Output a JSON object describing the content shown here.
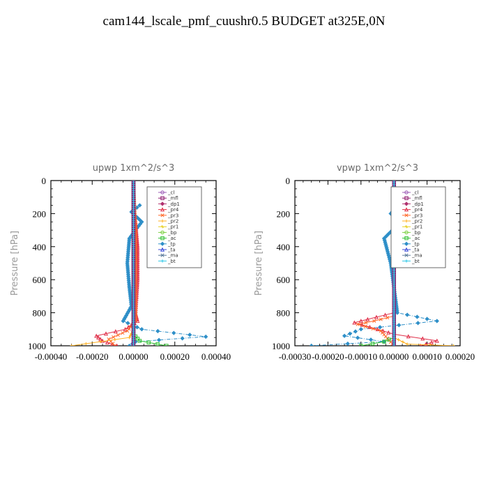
{
  "title": "cam144_lscale_pmf_cuushr0.5  BUDGET at325E,0N",
  "legend_entries": [
    "_cl",
    "_mfl",
    "_dp1",
    "_pr4",
    "_pr3",
    "_pr2",
    "_pr1",
    "_bp",
    "_ac",
    "_tp",
    "_ta",
    "_ma",
    "_bt"
  ],
  "colors": {
    "_cl": "#9b59b6",
    "_mfl": "#8e1a6e",
    "_dp1": "#b0306e",
    "_pr4": "#e0304a",
    "_pr3": "#ff6a2a",
    "_pr2": "#ffb020",
    "_pr1": "#e8d020",
    "_bp": "#7ad040",
    "_ac": "#30c030",
    "_tp": "#2e8fc8",
    "_ta": "#3a4ad8",
    "_ma": "#5a7a9a",
    "_bt": "#30c8e8"
  },
  "chart_data": [
    {
      "type": "line",
      "title": "upwp   1xm^2/s^3",
      "ylabel": "Pressure [hPa]",
      "xlabel": "",
      "xlim": [
        -0.0004,
        0.0004
      ],
      "ylim": [
        1000,
        0
      ],
      "x_ticks": [
        "-0.00040",
        "-0.00020",
        "0.00000",
        "0.00020",
        "0.00040"
      ],
      "y_ticks": [
        "0",
        "200",
        "400",
        "600",
        "800",
        "1000"
      ],
      "legend": "top-right",
      "series": [
        {
          "name": "_tp",
          "points": [
            [
              3e-05,
              150
            ],
            [
              -1e-05,
              190
            ],
            [
              4e-05,
              250
            ],
            [
              -2e-05,
              350
            ],
            [
              -3e-05,
              500
            ],
            [
              -2e-05,
              650
            ],
            [
              -1e-05,
              760
            ],
            [
              -5e-05,
              850
            ],
            [
              4e-05,
              900
            ],
            [
              0.00035,
              945
            ],
            [
              1e-05,
              975
            ],
            [
              -2e-05,
              1000
            ]
          ]
        },
        {
          "name": "_pr4",
          "points": [
            [
              0.0,
              0
            ],
            [
              0.0,
              150
            ],
            [
              1e-05,
              250
            ],
            [
              2e-05,
              400
            ],
            [
              2e-05,
              600
            ],
            [
              1e-05,
              800
            ],
            [
              2e-05,
              850
            ],
            [
              -4e-05,
              900
            ],
            [
              -0.00018,
              940
            ],
            [
              -0.00015,
              970
            ],
            [
              -8e-05,
              1000
            ]
          ]
        },
        {
          "name": "_pr3",
          "points": [
            [
              0.0,
              0
            ],
            [
              1e-05,
              300
            ],
            [
              1e-05,
              700
            ],
            [
              1e-05,
              850
            ],
            [
              -3e-05,
              910
            ],
            [
              -0.00012,
              960
            ],
            [
              -9e-05,
              1000
            ]
          ]
        },
        {
          "name": "_pr2",
          "points": [
            [
              0.0,
              0
            ],
            [
              0.0,
              900
            ],
            [
              -2e-05,
              950
            ],
            [
              -0.0003,
              1000
            ]
          ]
        },
        {
          "name": "_ac",
          "points": [
            [
              0.0,
              0
            ],
            [
              0.0,
              930
            ],
            [
              3e-05,
              970
            ],
            [
              0.00016,
              1000
            ]
          ]
        },
        {
          "name": "_cl",
          "points": [
            [
              0.0,
              0
            ],
            [
              0.0,
              1000
            ]
          ]
        },
        {
          "name": "_mfl",
          "points": [
            [
              0.0,
              0
            ],
            [
              0.0,
              1000
            ]
          ]
        },
        {
          "name": "_bt",
          "points": [
            [
              0.0,
              0
            ],
            [
              0.0,
              1000
            ]
          ]
        }
      ]
    },
    {
      "type": "line",
      "title": "vpwp   1xm^2/s^3",
      "ylabel": "Pressure [hPa]",
      "xlabel": "",
      "xlim": [
        -0.0003,
        0.0002
      ],
      "ylim": [
        1000,
        0
      ],
      "x_ticks": [
        "-0.00030",
        "-0.00020",
        "-0.00010",
        "0.00000",
        "0.00010",
        "0.00020"
      ],
      "y_ticks": [
        "0",
        "200",
        "400",
        "600",
        "800",
        "1000"
      ],
      "legend": "top-right",
      "series": [
        {
          "name": "_tp",
          "points": [
            [
              1e-05,
              150
            ],
            [
              -1e-05,
              200
            ],
            [
              2e-05,
              250
            ],
            [
              -3e-05,
              350
            ],
            [
              -1e-05,
              500
            ],
            [
              0.0,
              650
            ],
            [
              1e-05,
              800
            ],
            [
              0.00013,
              850
            ],
            [
              -0.0001,
              900
            ],
            [
              -0.00015,
              940
            ],
            [
              -3e-05,
              975
            ],
            [
              -0.00025,
              1000
            ]
          ]
        },
        {
          "name": "_pr4",
          "points": [
            [
              0.0,
              0
            ],
            [
              0.0,
              800
            ],
            [
              -8e-05,
              840
            ],
            [
              -0.00012,
              860
            ],
            [
              -5e-05,
              900
            ],
            [
              0.0,
              930
            ],
            [
              0.00013,
              970
            ],
            [
              8e-05,
              1000
            ]
          ]
        },
        {
          "name": "_pr3",
          "points": [
            [
              0.0,
              0
            ],
            [
              0.0,
              820
            ],
            [
              -6e-05,
              850
            ],
            [
              -0.00011,
              870
            ],
            [
              -4e-05,
              910
            ],
            [
              0.0,
              1000
            ]
          ]
        },
        {
          "name": "_pr2",
          "points": [
            [
              0.0,
              0
            ],
            [
              0.0,
              950
            ],
            [
              4e-05,
              990
            ],
            [
              0.00018,
              1000
            ]
          ]
        },
        {
          "name": "_ac",
          "points": [
            [
              0.0,
              0
            ],
            [
              0.0,
              950
            ],
            [
              -3e-05,
              975
            ],
            [
              -0.0001,
              1000
            ]
          ]
        },
        {
          "name": "_cl",
          "points": [
            [
              0.0,
              0
            ],
            [
              0.0,
              1000
            ]
          ]
        },
        {
          "name": "_mfl",
          "points": [
            [
              0.0,
              0
            ],
            [
              0.0,
              1000
            ]
          ]
        },
        {
          "name": "_bt",
          "points": [
            [
              0.0,
              0
            ],
            [
              0.0,
              1000
            ]
          ]
        }
      ]
    }
  ]
}
